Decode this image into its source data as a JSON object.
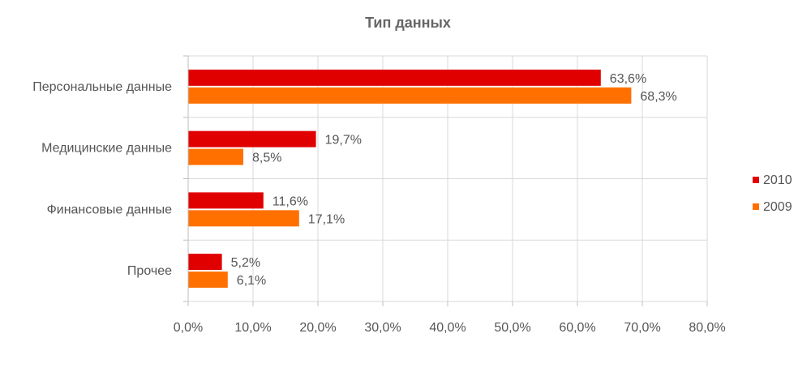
{
  "chart_data": {
    "type": "bar",
    "orientation": "horizontal",
    "title": "Тип данных",
    "xlabel": "",
    "ylabel": "",
    "categories": [
      "Персональные данные",
      "Медицинские данные",
      "Финансовые данные",
      "Прочее"
    ],
    "series": [
      {
        "name": "2010",
        "color": "#e00000",
        "values": [
          63.6,
          19.7,
          11.6,
          5.2
        ],
        "labels": [
          "63,6%",
          "19,7%",
          "11,6%",
          "5,2%"
        ]
      },
      {
        "name": "2009",
        "color": "#ff7000",
        "values": [
          68.3,
          8.5,
          17.1,
          6.1
        ],
        "labels": [
          "68,3%",
          "8,5%",
          "17,1%",
          "6,1%"
        ]
      }
    ],
    "xlim": [
      0,
      80
    ],
    "xticks": [
      0,
      10,
      20,
      30,
      40,
      50,
      60,
      70,
      80
    ],
    "xtick_labels": [
      "0,0%",
      "10,0%",
      "20,0%",
      "30,0%",
      "40,0%",
      "50,0%",
      "60,0%",
      "70,0%",
      "80,0%"
    ],
    "grid": true,
    "legend_position": "right"
  }
}
